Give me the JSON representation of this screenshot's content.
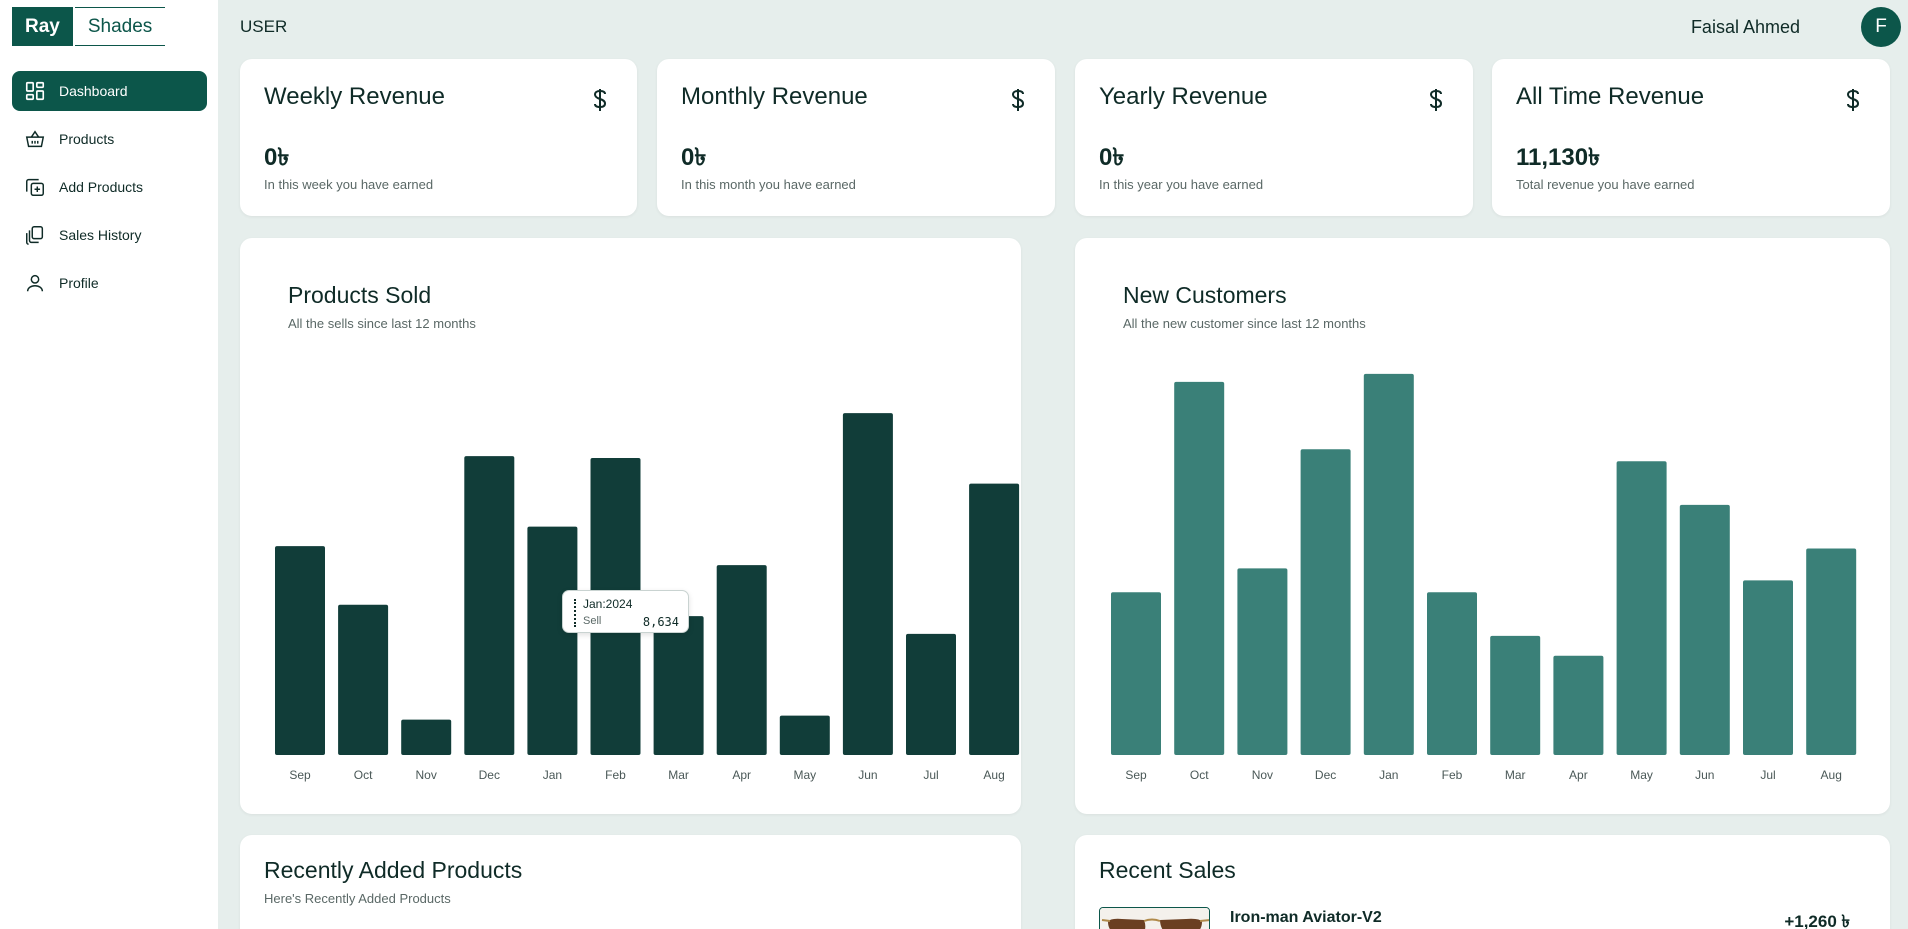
{
  "brand": {
    "part1": "Ray",
    "part2": "Shades"
  },
  "nav": [
    {
      "label": "Dashboard",
      "icon": "dashboard-icon",
      "active": true
    },
    {
      "label": "Products",
      "icon": "basket-icon",
      "active": false
    },
    {
      "label": "Add Products",
      "icon": "add-copy-icon",
      "active": false
    },
    {
      "label": "Sales History",
      "icon": "copy-icon",
      "active": false
    },
    {
      "label": "Profile",
      "icon": "user-icon",
      "active": false
    }
  ],
  "header": {
    "title": "USER",
    "user_name": "Faisal Ahmed",
    "avatar_initial": "F"
  },
  "stats": [
    {
      "title": "Weekly Revenue",
      "value": "0৳",
      "subtitle": "In this week you have earned"
    },
    {
      "title": "Monthly Revenue",
      "value": "0৳",
      "subtitle": "In this month you have earned"
    },
    {
      "title": "Yearly Revenue",
      "value": "0৳",
      "subtitle": "In this year you have earned"
    },
    {
      "title": "All Time Revenue",
      "value": "11,130৳",
      "subtitle": "Total revenue you have earned"
    }
  ],
  "colors": {
    "primary": "#0c564a",
    "products_bar": "#113d39",
    "customers_bar": "#3a8078",
    "background": "#e6eeec"
  },
  "chart_data": [
    {
      "type": "bar",
      "title": "Products Sold",
      "subtitle": "All the sells since last 12 months",
      "categories": [
        "Sep",
        "Oct",
        "Nov",
        "Dec",
        "Jan",
        "Feb",
        "Mar",
        "Apr",
        "May",
        "Jun",
        "Jul",
        "Aug"
      ],
      "values": [
        7900,
        5680,
        1340,
        11300,
        8634,
        11230,
        5250,
        7180,
        1490,
        12930,
        4580,
        10260
      ],
      "ylim": [
        0,
        13500
      ],
      "grid": false,
      "tooltip": {
        "date": "Jan:2024",
        "label": "Sell",
        "value": "8,634"
      }
    },
    {
      "type": "bar",
      "title": "New Customers",
      "subtitle": "All the new customer since last 12 months",
      "categories": [
        "Sep",
        "Oct",
        "Nov",
        "Dec",
        "Jan",
        "Feb",
        "Mar",
        "Apr",
        "May",
        "Jun",
        "Jul",
        "Aug"
      ],
      "values": [
        41,
        94,
        47,
        77,
        96,
        41,
        30,
        25,
        74,
        63,
        44,
        52
      ],
      "ylim": [
        0,
        100
      ],
      "grid": false
    }
  ],
  "recent_products": {
    "title": "Recently Added Products",
    "subtitle": "Here's Recently Added Products"
  },
  "recent_sales": {
    "title": "Recent Sales",
    "items": [
      {
        "name": "Iron-man Aviator-V2",
        "amount": "+1,260 ৳",
        "thumb": "sunglasses-image"
      }
    ]
  }
}
